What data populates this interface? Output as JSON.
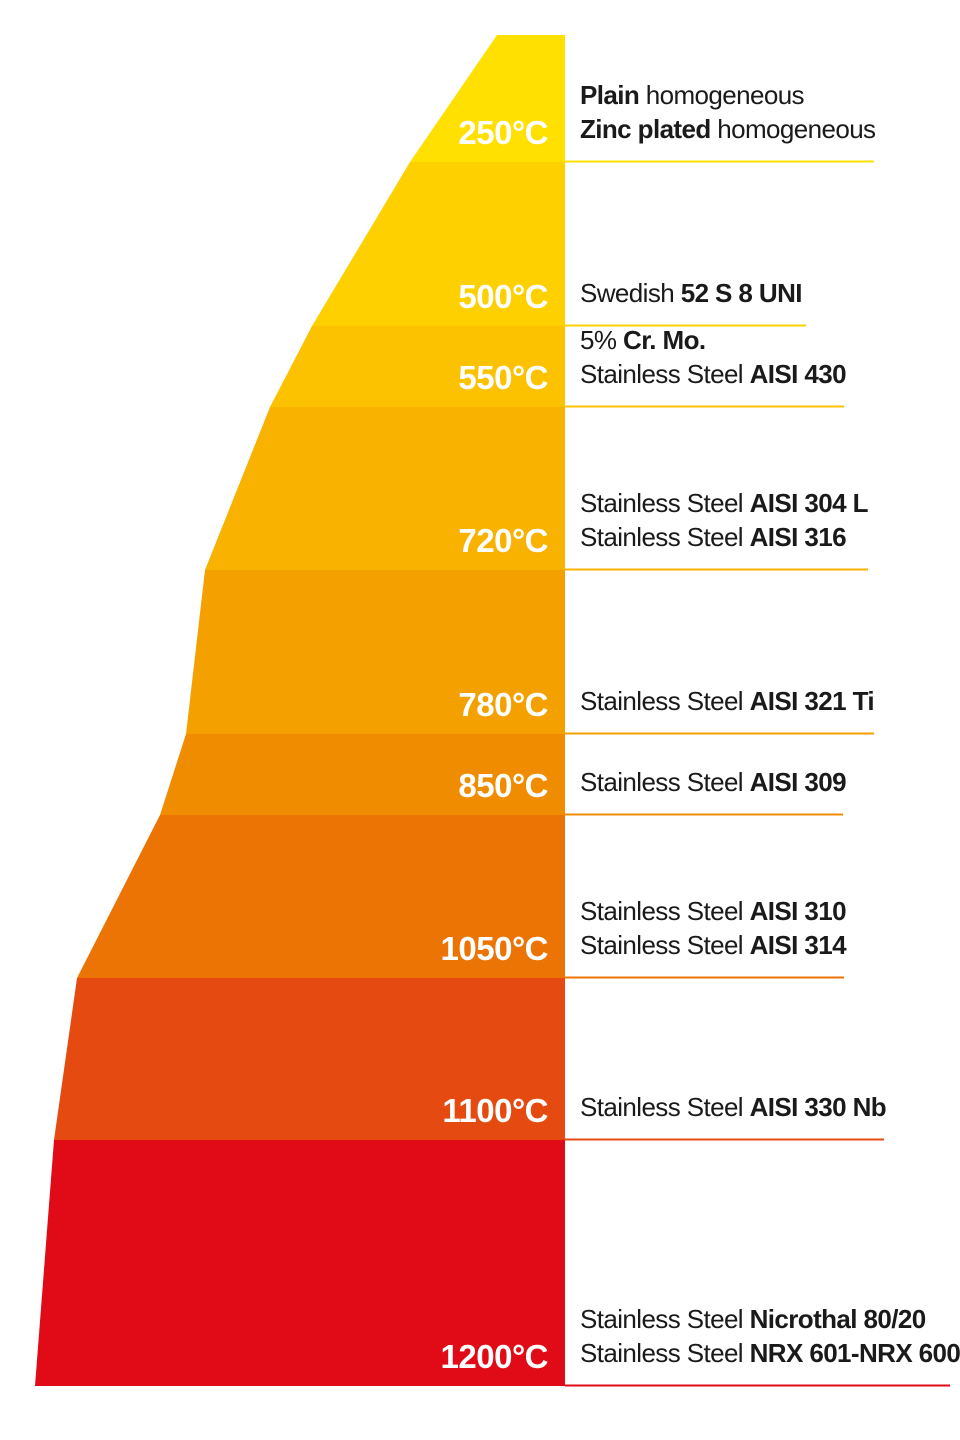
{
  "bands": [
    {
      "temperature": "250°C",
      "color": "#FFE000",
      "lines": [
        [
          {
            "text": "Plain",
            "bold": true
          },
          {
            "text": " homogeneous",
            "bold": false
          }
        ],
        [
          {
            "text": "Zinc plated",
            "bold": true
          },
          {
            "text": " homogeneous",
            "bold": false
          }
        ]
      ]
    },
    {
      "temperature": "500°C",
      "color": "#FED000",
      "lines": [
        [
          {
            "text": "Swedish ",
            "bold": false
          },
          {
            "text": "52 S 8 UNI",
            "bold": true
          }
        ]
      ]
    },
    {
      "temperature": "550°C",
      "color": "#FCC200",
      "lines": [
        [
          {
            "text": "5% ",
            "bold": false
          },
          {
            "text": "Cr. Mo.",
            "bold": true
          }
        ],
        [
          {
            "text": "Stainless Steel ",
            "bold": false
          },
          {
            "text": "AISI 430",
            "bold": true
          }
        ]
      ]
    },
    {
      "temperature": "720°C",
      "color": "#F9B200",
      "lines": [
        [
          {
            "text": "Stainless Steel ",
            "bold": false
          },
          {
            "text": "AISI 304 L",
            "bold": true
          }
        ],
        [
          {
            "text": "Stainless Steel ",
            "bold": false
          },
          {
            "text": "AISI 316",
            "bold": true
          }
        ]
      ]
    },
    {
      "temperature": "780°C",
      "color": "#F4A100",
      "lines": [
        [
          {
            "text": "Stainless Steel ",
            "bold": false
          },
          {
            "text": "AISI 321 Ti",
            "bold": true
          }
        ]
      ]
    },
    {
      "temperature": "850°C",
      "color": "#F08C00",
      "lines": [
        [
          {
            "text": "Stainless Steel ",
            "bold": false
          },
          {
            "text": "AISI 309",
            "bold": true
          }
        ]
      ]
    },
    {
      "temperature": "1050°C",
      "color": "#EC7404",
      "lines": [
        [
          {
            "text": "Stainless Steel ",
            "bold": false
          },
          {
            "text": "AISI 310",
            "bold": true
          }
        ],
        [
          {
            "text": "Stainless Steel ",
            "bold": false
          },
          {
            "text": "AISI 314",
            "bold": true
          }
        ]
      ]
    },
    {
      "temperature": "1100°C",
      "color": "#E54B10",
      "lines": [
        [
          {
            "text": "Stainless Steel ",
            "bold": false
          },
          {
            "text": "AISI 330 Nb",
            "bold": true
          }
        ]
      ]
    },
    {
      "temperature": "1200°C",
      "color": "#E10A17",
      "lines": [
        [
          {
            "text": "Stainless Steel ",
            "bold": false
          },
          {
            "text": "Nicrothal 80/20",
            "bold": true
          }
        ],
        [
          {
            "text": "Stainless Steel ",
            "bold": false
          },
          {
            "text": "NRX 601-NRX 600",
            "bold": true
          }
        ]
      ]
    }
  ]
}
